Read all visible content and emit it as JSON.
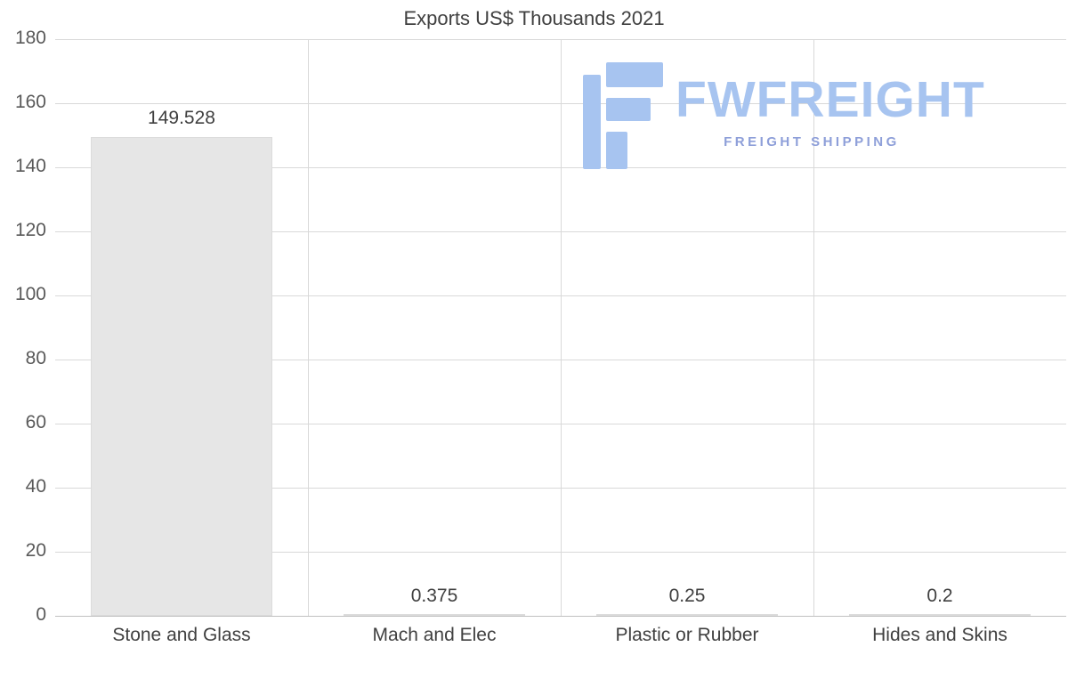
{
  "title": "Exports US$ Thousands 2021",
  "watermark": {
    "brand": "FWFREIGHT",
    "tagline": "FREIGHT SHIPPING",
    "icon": "fwfreight-logo-icon"
  },
  "colors": {
    "bar_fill": "#e6e6e6",
    "bar_border": "#dcdcdc",
    "grid": "#d9d9d9",
    "text": "#404040",
    "tick_text": "#595959",
    "logo_main": "#a7c4f0",
    "logo_sub": "#8e9fd9"
  },
  "chart_data": {
    "type": "bar",
    "title": "Exports US$ Thousands 2021",
    "categories": [
      "Stone and Glass",
      "Mach and Elec",
      "Plastic or Rubber",
      "Hides and Skins"
    ],
    "values": [
      149.528,
      0.375,
      0.25,
      0.2
    ],
    "data_labels": [
      "149.528",
      "0.375",
      "0.25",
      "0.2"
    ],
    "xlabel": "",
    "ylabel": "",
    "ylim": [
      0,
      180
    ],
    "yticks": [
      0,
      20,
      40,
      60,
      80,
      100,
      120,
      140,
      160,
      180
    ],
    "grid": "horizontal gridlines at each ytick plus vertical category separators",
    "legend": "none",
    "bar_color": "#e6e6e6"
  }
}
